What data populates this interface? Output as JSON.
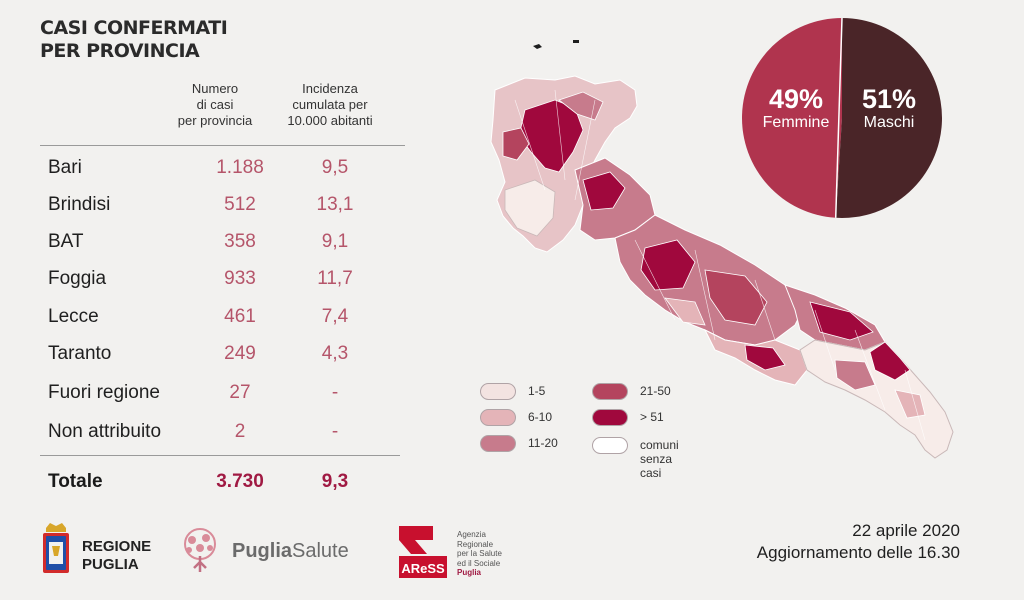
{
  "title": [
    "CASI CONFERMATI",
    "PER PROVINCIA"
  ],
  "columns": {
    "cases": [
      "Numero",
      "di casi",
      "per provincia"
    ],
    "incidence": [
      "Incidenza",
      "cumulata per",
      "10.000 abitanti"
    ]
  },
  "rows": [
    {
      "name": "Bari",
      "cases": "1.188",
      "incidence": "9,5"
    },
    {
      "name": "Brindisi",
      "cases": "512",
      "incidence": "13,1"
    },
    {
      "name": "BAT",
      "cases": "358",
      "incidence": "9,1"
    },
    {
      "name": "Foggia",
      "cases": "933",
      "incidence": "11,7"
    },
    {
      "name": "Lecce",
      "cases": "461",
      "incidence": "7,4"
    },
    {
      "name": "Taranto",
      "cases": "249",
      "incidence": "4,3"
    },
    {
      "name": "Fuori regione",
      "cases": "27",
      "incidence": "-"
    },
    {
      "name": "Non attribuito",
      "cases": "2",
      "incidence": "-"
    }
  ],
  "total": {
    "name": "Totale",
    "cases": "3.730",
    "incidence": "9,3"
  },
  "gender": {
    "female": {
      "pct": "49%",
      "label": "Femmine",
      "value": 49,
      "color": "#b0344e"
    },
    "male": {
      "pct": "51%",
      "label": "Maschi",
      "value": 51,
      "color": "#4a2528"
    }
  },
  "legend": [
    {
      "label": "1-5",
      "color": "#f3e3e1"
    },
    {
      "label": "6-10",
      "color": "#e4b4b8"
    },
    {
      "label": "11-20",
      "color": "#c77b8c"
    },
    {
      "label": "21-50",
      "color": "#b4445e"
    },
    {
      "label": "> 51",
      "color": "#a0083d"
    },
    {
      "label": "comuni\nsenza casi",
      "color": "#ffffff"
    }
  ],
  "logos": {
    "regione": [
      "REGIONE",
      "PUGLIA"
    ],
    "puglia_salute": {
      "bold": "Puglia",
      "light": "Salute"
    },
    "aress": {
      "mark": "AReSS",
      "lines": [
        "Agenzia",
        "Regionale",
        "per la Salute",
        "ed il Sociale"
      ],
      "region": "Puglia"
    }
  },
  "update": {
    "date": "22 aprile 2020",
    "time": "Aggiornamento delle 16.30"
  }
}
